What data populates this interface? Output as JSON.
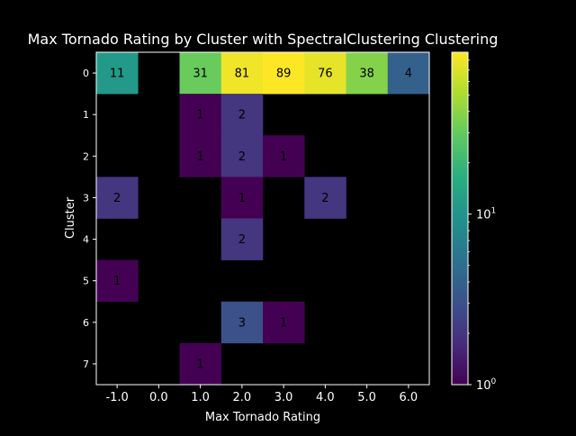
{
  "chart_data": {
    "type": "heatmap",
    "title": "Max Tornado Rating by Cluster with SpectralClustering Clustering",
    "xlabel": "Max Tornado Rating",
    "ylabel": "Cluster",
    "x_categories": [
      "-1.0",
      "0.0",
      "1.0",
      "2.0",
      "3.0",
      "4.0",
      "5.0",
      "6.0"
    ],
    "y_categories": [
      "0",
      "1",
      "2",
      "3",
      "4",
      "5",
      "6",
      "7"
    ],
    "values": [
      [
        11,
        null,
        31,
        81,
        89,
        76,
        38,
        4
      ],
      [
        null,
        null,
        1,
        2,
        null,
        null,
        null,
        null
      ],
      [
        null,
        null,
        1,
        2,
        1,
        null,
        null,
        null
      ],
      [
        2,
        null,
        null,
        1,
        null,
        2,
        null,
        null
      ],
      [
        null,
        null,
        null,
        2,
        null,
        null,
        null,
        null
      ],
      [
        1,
        null,
        null,
        null,
        null,
        null,
        null,
        null
      ],
      [
        null,
        null,
        null,
        3,
        1,
        null,
        null,
        null
      ],
      [
        null,
        null,
        1,
        null,
        null,
        null,
        null,
        null
      ]
    ],
    "colormap": "viridis",
    "color_scale": "log",
    "color_range": [
      1,
      89
    ],
    "colorbar_ticks": [
      {
        "value": 1,
        "label": "10",
        "exp": "0"
      },
      {
        "value": 10,
        "label": "10",
        "exp": "1"
      }
    ],
    "background": "#000000",
    "text_color": "#ffffff",
    "cell_label_color": "#000000"
  }
}
